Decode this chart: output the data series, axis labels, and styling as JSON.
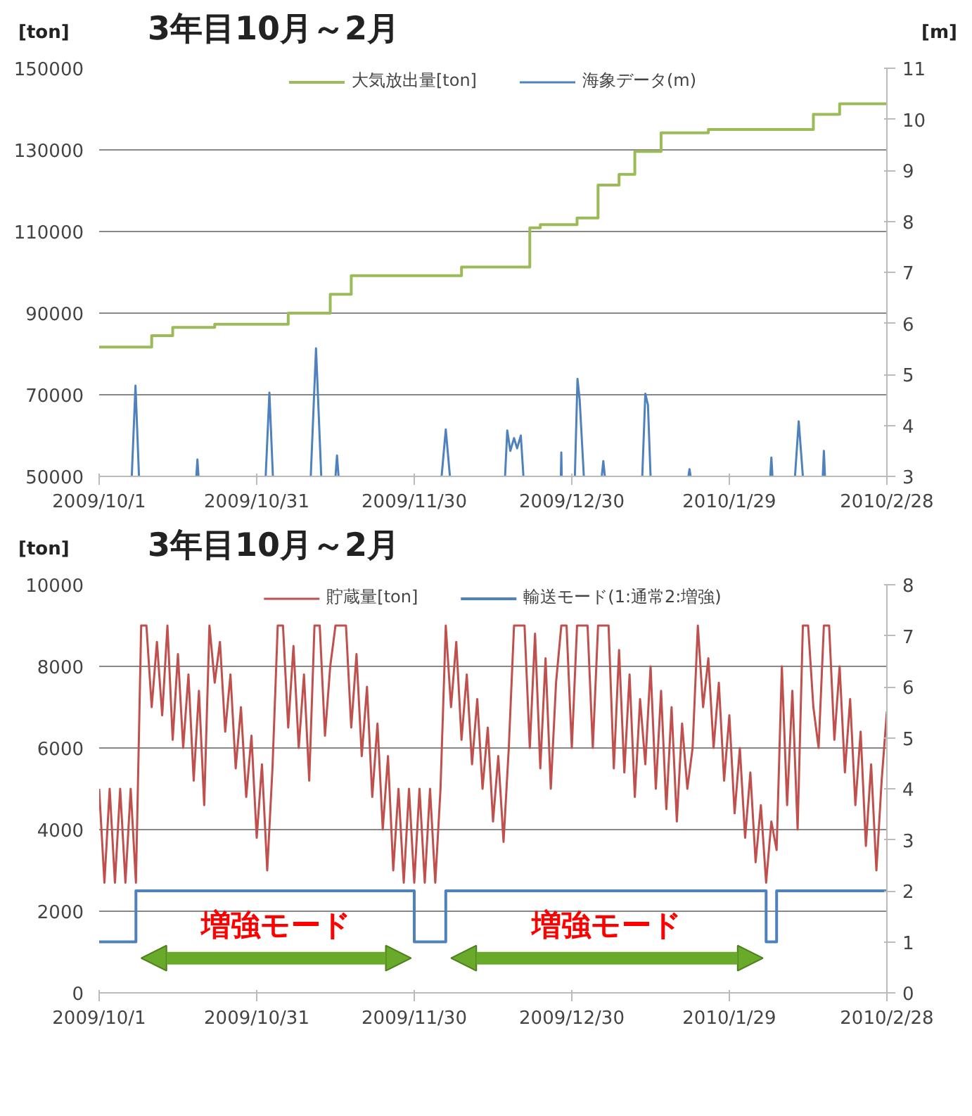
{
  "chart_data": [
    {
      "type": "step",
      "title": "3年目10月～2月",
      "ylabel": "[ton]",
      "y2label": "[m]",
      "xlim": [
        "2009-10-01",
        "2010-02-28"
      ],
      "xticks": [
        {
          "value": "2009-10-01",
          "label": "2009/10/1"
        },
        {
          "value": "2009-10-31",
          "label": "2009/10/31"
        },
        {
          "value": "2009-11-30",
          "label": "2009/11/30"
        },
        {
          "value": "2009-12-30",
          "label": "2009/12/30"
        },
        {
          "value": "2010-01-29",
          "label": "2010/1/29"
        },
        {
          "value": "2010-02-28",
          "label": "2010/2/28"
        }
      ],
      "ylim": [
        50000,
        150000
      ],
      "yticks": [
        50000,
        70000,
        90000,
        110000,
        130000,
        150000
      ],
      "y2lim": [
        3,
        11
      ],
      "y2ticks": [
        3,
        4,
        5,
        6,
        7,
        8,
        9,
        10,
        11
      ],
      "grid": "y",
      "legend": "top",
      "series": [
        {
          "name": "大気放出量[ton]",
          "color": "#9bbb59",
          "x": [
            "2009-10-01",
            "2009-10-11",
            "2009-10-15",
            "2009-10-23",
            "2009-11-06",
            "2009-11-14",
            "2009-11-18",
            "2009-12-09",
            "2009-12-22",
            "2009-12-24",
            "2009-12-31",
            "2010-01-04",
            "2010-01-08",
            "2010-01-11",
            "2010-01-16",
            "2010-01-25",
            "2010-02-14",
            "2010-02-19",
            "2010-02-28"
          ],
          "values": [
            81700,
            84500,
            86500,
            87300,
            90000,
            94600,
            99200,
            101300,
            110900,
            111700,
            113300,
            121400,
            124000,
            129600,
            134200,
            135000,
            138700,
            141300,
            141300
          ]
        },
        {
          "name": "海象データ(m)",
          "type": "line",
          "axis": "y2",
          "color": "#4f81bd",
          "x": [
            "2009-10-07T05:00",
            "2009-10-07T22:00",
            "2009-10-08T14:00",
            "2009-10-09",
            "2009-10-19T12:00",
            "2009-10-19T17:00",
            "2009-10-19T22:00",
            "2009-10-21",
            "2009-11-01T17:00",
            "2009-11-02T10:00",
            "2009-11-03T02:00",
            "2009-11-04",
            "2009-11-10T07:00",
            "2009-11-11T07:00",
            "2009-11-12T07:00",
            "2009-11-13",
            "2009-11-15T00:00",
            "2009-11-15T07:00",
            "2009-11-15T14:00",
            "2009-11-17",
            "2009-12-05T05:00",
            "2009-12-06T00:00",
            "2009-12-06T19:00",
            "2009-12-10",
            "2009-12-17T07:00",
            "2009-12-17T17:00",
            "2009-12-18T07:00",
            "2009-12-19T00:00",
            "2009-12-19T14:00",
            "2009-12-20T07:00",
            "2009-12-20T19:00",
            "2009-12-22",
            "2009-12-27T22:00",
            "2009-12-28T00:00",
            "2009-12-28T02:00",
            "2009-12-29T12:00",
            "2009-12-30T14:00",
            "2009-12-31T02:00",
            "2009-12-31T12:00",
            "2010-01-01T07:00",
            "2010-01-02",
            "2010-01-04T17:00",
            "2010-01-05T00:00",
            "2010-01-05T07:00",
            "2010-01-07",
            "2010-01-12T10:00",
            "2010-01-13T00:00",
            "2010-01-13T12:00",
            "2010-01-14T00:00",
            "2010-01-16",
            "2010-01-21T05:00",
            "2010-01-21T10:00",
            "2010-01-21T15:00",
            "2010-01-30",
            "2010-02-05T19:00",
            "2010-02-06T00:00",
            "2010-02-06T05:00",
            "2010-02-08",
            "2010-02-10T12:00",
            "2010-02-11T05:00",
            "2010-02-12T00:00",
            "2010-02-14",
            "2010-02-15T19:00",
            "2010-02-16T00:00",
            "2010-02-16T05:00"
          ],
          "values": [
            3,
            4.78,
            3,
            null,
            3,
            3.33,
            3,
            null,
            3,
            4.64,
            3,
            null,
            3,
            5.51,
            3,
            null,
            3,
            3.41,
            3,
            null,
            3,
            3.92,
            3,
            null,
            3,
            3.9,
            3.5,
            3.75,
            3.55,
            3.8,
            3,
            null,
            3,
            3.47,
            3,
            null,
            3,
            4.91,
            4.5,
            3,
            null,
            3,
            3.3,
            3,
            null,
            3,
            4.62,
            4.4,
            3,
            null,
            3,
            3.14,
            3,
            null,
            3,
            3.37,
            3,
            null,
            3,
            4.08,
            3,
            null,
            3,
            3.5,
            3
          ]
        }
      ]
    },
    {
      "type": "line",
      "title": "3年目10月～2月",
      "ylabel": "[ton]",
      "xlim": [
        "2009-10-01",
        "2010-02-28"
      ],
      "xticks": [
        {
          "value": "2009-10-01",
          "label": "2009/10/1"
        },
        {
          "value": "2009-10-31",
          "label": "2009/10/31"
        },
        {
          "value": "2009-11-30",
          "label": "2009/11/30"
        },
        {
          "value": "2009-12-30",
          "label": "2009/12/30"
        },
        {
          "value": "2010-01-29",
          "label": "2010/1/29"
        },
        {
          "value": "2010-02-28",
          "label": "2010/2/28"
        }
      ],
      "ylim": [
        0,
        10000
      ],
      "yticks": [
        0,
        2000,
        4000,
        6000,
        8000,
        10000
      ],
      "y2lim": [
        0,
        8
      ],
      "y2ticks": [
        0,
        1,
        2,
        3,
        4,
        5,
        6,
        7,
        8
      ],
      "grid": "y",
      "legend": "top",
      "annotations": [
        "増強モード",
        "増強モード"
      ],
      "x": [
        "2009-10-01",
        "2009-10-02",
        "2009-10-03",
        "2009-10-04",
        "2009-10-05",
        "2009-10-06",
        "2009-10-07",
        "2009-10-08",
        "2009-10-09",
        "2009-10-10",
        "2009-10-11",
        "2009-10-12",
        "2009-10-13",
        "2009-10-14",
        "2009-10-15",
        "2009-10-16",
        "2009-10-17",
        "2009-10-18",
        "2009-10-19",
        "2009-10-20",
        "2009-10-21",
        "2009-10-22",
        "2009-10-23",
        "2009-10-24",
        "2009-10-25",
        "2009-10-26",
        "2009-10-27",
        "2009-10-28",
        "2009-10-29",
        "2009-10-30",
        "2009-10-31",
        "2009-11-01",
        "2009-11-02",
        "2009-11-03",
        "2009-11-04",
        "2009-11-05",
        "2009-11-06",
        "2009-11-07",
        "2009-11-08",
        "2009-11-09",
        "2009-11-10",
        "2009-11-11",
        "2009-11-12",
        "2009-11-13",
        "2009-11-14",
        "2009-11-15",
        "2009-11-16",
        "2009-11-17",
        "2009-11-18",
        "2009-11-19",
        "2009-11-20",
        "2009-11-21",
        "2009-11-22",
        "2009-11-23",
        "2009-11-24",
        "2009-11-25",
        "2009-11-26",
        "2009-11-27",
        "2009-11-28",
        "2009-11-29",
        "2009-11-30",
        "2009-12-01",
        "2009-12-02",
        "2009-12-03",
        "2009-12-04",
        "2009-12-05",
        "2009-12-06",
        "2009-12-07",
        "2009-12-08",
        "2009-12-09",
        "2009-12-10",
        "2009-12-11",
        "2009-12-12",
        "2009-12-13",
        "2009-12-14",
        "2009-12-15",
        "2009-12-16",
        "2009-12-17",
        "2009-12-18",
        "2009-12-19",
        "2009-12-20",
        "2009-12-21",
        "2009-12-22",
        "2009-12-23",
        "2009-12-24",
        "2009-12-25",
        "2009-12-26",
        "2009-12-27",
        "2009-12-28",
        "2009-12-29",
        "2009-12-30",
        "2009-12-31",
        "2010-01-01",
        "2010-01-02",
        "2010-01-03",
        "2010-01-04",
        "2010-01-05",
        "2010-01-06",
        "2010-01-07",
        "2010-01-08",
        "2010-01-09",
        "2010-01-10",
        "2010-01-11",
        "2010-01-12",
        "2010-01-13",
        "2010-01-14",
        "2010-01-15",
        "2010-01-16",
        "2010-01-17",
        "2010-01-18",
        "2010-01-19",
        "2010-01-20",
        "2010-01-21",
        "2010-01-22",
        "2010-01-23",
        "2010-01-24",
        "2010-01-25",
        "2010-01-26",
        "2010-01-27",
        "2010-01-28",
        "2010-01-29",
        "2010-01-30",
        "2010-01-31",
        "2010-02-01",
        "2010-02-02",
        "2010-02-03",
        "2010-02-04",
        "2010-02-05",
        "2010-02-06",
        "2010-02-07",
        "2010-02-08",
        "2010-02-09",
        "2010-02-10",
        "2010-02-11",
        "2010-02-12",
        "2010-02-13",
        "2010-02-14",
        "2010-02-15",
        "2010-02-16",
        "2010-02-17",
        "2010-02-18",
        "2010-02-19",
        "2010-02-20",
        "2010-02-21",
        "2010-02-22",
        "2010-02-23",
        "2010-02-24",
        "2010-02-25",
        "2010-02-26",
        "2010-02-27",
        "2010-02-28"
      ],
      "series": [
        {
          "name": "貯蔵量[ton]",
          "color": "#c0504d",
          "values": [
            5000,
            2700,
            5000,
            2700,
            5000,
            2700,
            5000,
            2700,
            9000,
            9000,
            7000,
            8600,
            6800,
            9000,
            6200,
            8300,
            6000,
            7800,
            5200,
            7400,
            4600,
            9000,
            7600,
            8600,
            6400,
            7800,
            5500,
            7000,
            4800,
            6300,
            3800,
            5600,
            3000,
            5500,
            9000,
            9000,
            6500,
            8500,
            6000,
            7800,
            5200,
            9000,
            9000,
            6300,
            8000,
            9000,
            9000,
            9000,
            6500,
            8300,
            5800,
            7500,
            4800,
            6600,
            4000,
            5800,
            3000,
            5000,
            2700,
            5000,
            2700,
            5000,
            2700,
            5000,
            2700,
            5000,
            9000,
            7000,
            8600,
            6200,
            7800,
            5600,
            7200,
            5000,
            6500,
            4200,
            5800,
            3700,
            6000,
            9000,
            9000,
            9000,
            6000,
            8800,
            5500,
            8200,
            5000,
            7600,
            9000,
            9000,
            6000,
            9000,
            9000,
            9000,
            6000,
            9000,
            9000,
            9000,
            5500,
            8400,
            5400,
            7800,
            4800,
            7200,
            5600,
            8000,
            5000,
            7400,
            4500,
            7000,
            4200,
            6600,
            5000,
            6000,
            9000,
            7000,
            8200,
            6000,
            7600,
            5200,
            6800,
            4400,
            6000,
            3800,
            5400,
            3200,
            4600,
            2700,
            4200,
            3500,
            8000,
            4600,
            7400,
            4000,
            9000,
            9000,
            7000,
            6000,
            9000,
            9000,
            6200,
            8000,
            5400,
            7200,
            4600,
            6400,
            3600,
            5600,
            3000,
            5200,
            6900
          ]
        },
        {
          "name": "輸送モード(1:通常2:増強)",
          "type": "step",
          "axis": "y2",
          "color": "#4f81bd",
          "x": [
            "2009-10-01",
            "2009-10-08",
            "2009-11-30",
            "2009-12-06",
            "2010-02-05",
            "2010-02-07",
            "2010-02-28"
          ],
          "values": [
            1,
            2,
            1,
            2,
            1,
            2,
            2
          ]
        }
      ]
    }
  ]
}
